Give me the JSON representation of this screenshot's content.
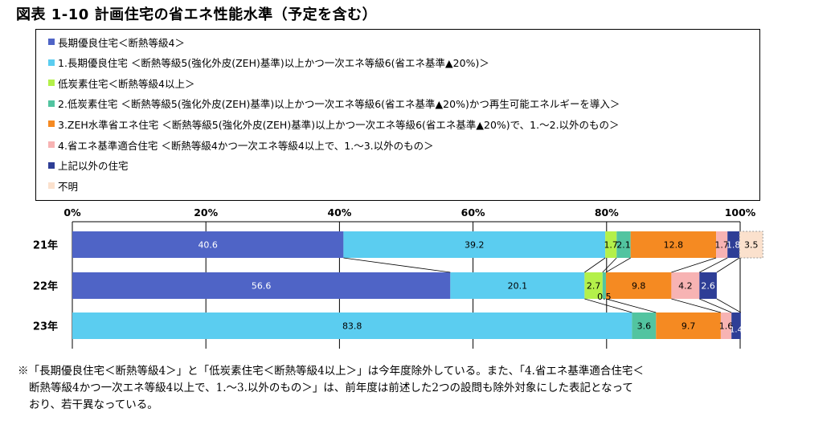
{
  "title": "図表 1-10 計画住宅の省エネ性能水準（予定を含む）",
  "chart_data": {
    "type": "bar",
    "orientation": "horizontal",
    "stacked": true,
    "percent": true,
    "categories": [
      "21年",
      "22年",
      "23年"
    ],
    "xlim": [
      0,
      100
    ],
    "x_ticks": [
      "0%",
      "20%",
      "40%",
      "60%",
      "80%",
      "100%"
    ],
    "grid": true,
    "legend_position": "top",
    "series": [
      {
        "name": "長期優良住宅＜断熱等級4＞",
        "color": "#4f64c6",
        "values": [
          40.6,
          56.6,
          null
        ],
        "labels": [
          "40.6",
          "56.6",
          ""
        ]
      },
      {
        "name": "1.長期優良住宅 ＜断熱等級5(強化外皮(ZEH)基準)以上かつ一次エネ等級6(省エネ基準▲20%)＞",
        "color": "#5bcdf0",
        "values": [
          39.2,
          20.1,
          83.8
        ],
        "labels": [
          "39.2",
          "20.1",
          "83.8"
        ]
      },
      {
        "name": "低炭素住宅＜断熱等級4以上＞",
        "color": "#b4f04a",
        "values": [
          1.7,
          2.7,
          null
        ],
        "labels": [
          "1.7",
          "2.7",
          ""
        ]
      },
      {
        "name": "2.低炭素住宅 ＜断熱等級5(強化外皮(ZEH)基準)以上かつ一次エネ等級6(省エネ基準▲20%)かつ再生可能エネルギーを導入＞",
        "color": "#52c4a0",
        "values": [
          2.1,
          0.5,
          3.6
        ],
        "labels": [
          "2.1",
          "0.5",
          "3.6"
        ]
      },
      {
        "name": "3.ZEH水準省エネ住宅 ＜断熱等級5(強化外皮(ZEH)基準)以上かつ一次エネ等級6(省エネ基準▲20%)で、1.～2.以外のもの＞",
        "color": "#f58a22",
        "values": [
          12.8,
          9.8,
          9.7
        ],
        "labels": [
          "12.8",
          "9.8",
          "9.7"
        ]
      },
      {
        "name": "4.省エネ基準適合住宅 ＜断熱等級4かつ一次エネ等級4以上で、1.～3.以外のもの＞",
        "color": "#f7b3b3",
        "values": [
          1.7,
          4.2,
          1.6
        ],
        "labels": [
          "1.7",
          "4.2",
          "1.6"
        ]
      },
      {
        "name": "上記以外の住宅",
        "color": "#2e3e96",
        "values": [
          1.8,
          2.6,
          1.4
        ],
        "labels": [
          "1.8",
          "2.6",
          "1.4"
        ]
      },
      {
        "name": "不明",
        "color": "#fbe1cd",
        "values": [
          3.5,
          null,
          null
        ],
        "labels": [
          "3.5",
          "",
          ""
        ]
      }
    ]
  },
  "note": {
    "line1": "※「長期優良住宅＜断熱等級4＞」と「低炭素住宅＜断熱等級4以上＞」は今年度除外している。また、「4.省エネ基準適合住宅＜",
    "line2": "断熱等級4かつ一次エネ等級4以上で、1.～3.以外のもの＞」は、前年度は前述した2つの設問も除外対象にした表記となって",
    "line3": "おり、若干異なっている。"
  }
}
